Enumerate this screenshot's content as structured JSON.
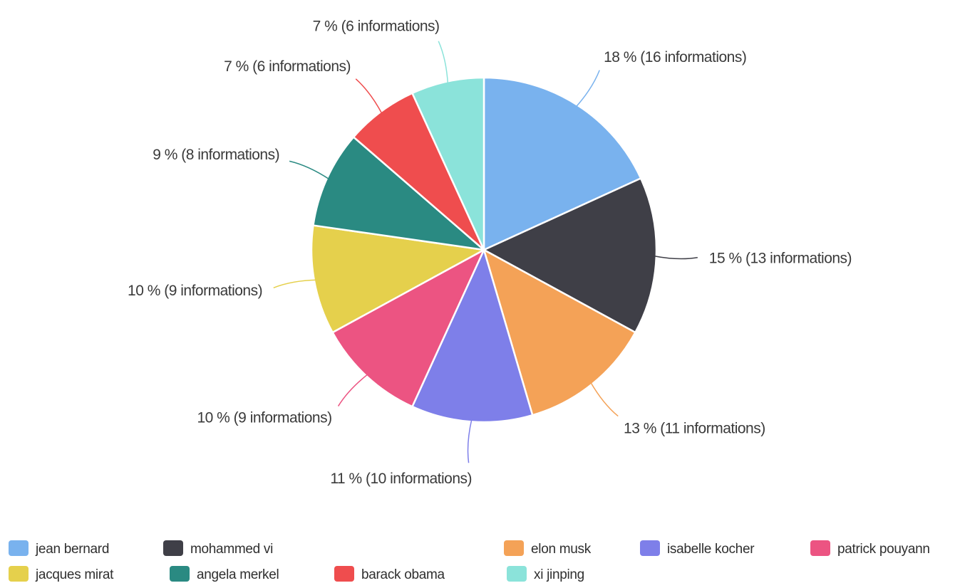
{
  "chart_data": {
    "type": "pie",
    "slices": [
      {
        "name": "jean bernard",
        "value": 16,
        "label": "18 % (16 informations)",
        "color": "#79b2ee"
      },
      {
        "name": "mohammed vi",
        "value": 13,
        "label": "15 % (13 informations)",
        "color": "#3f3f47"
      },
      {
        "name": "elon musk",
        "value": 11,
        "label": "13 % (11 informations)",
        "color": "#f4a257"
      },
      {
        "name": "isabelle kocher",
        "value": 10,
        "label": "11 % (10 informations)",
        "color": "#7e7fe9"
      },
      {
        "name": "patrick pouyann",
        "value": 9,
        "label": "10 % (9 informations)",
        "color": "#ec5482"
      },
      {
        "name": "jacques mirat",
        "value": 9,
        "label": "10 % (9 informations)",
        "color": "#e5d04c"
      },
      {
        "name": "angela merkel",
        "value": 8,
        "label": "9 % (8 informations)",
        "color": "#2a8a82"
      },
      {
        "name": "barack obama",
        "value": 6,
        "label": "7 % (6 informations)",
        "color": "#ef4d4e"
      },
      {
        "name": "xi jinping",
        "value": 6,
        "label": "7 % (6 informations)",
        "color": "#8be3da"
      }
    ],
    "start_angle": "12 o'clock",
    "direction": "clockwise",
    "legend": {
      "placement": "bottom",
      "rows": [
        [
          "jean bernard",
          "mohammed vi",
          "elon musk",
          "isabelle kocher",
          "patrick pouyann"
        ],
        [
          "jacques mirat",
          "angela merkel",
          "barack obama",
          "xi jinping"
        ]
      ]
    }
  }
}
